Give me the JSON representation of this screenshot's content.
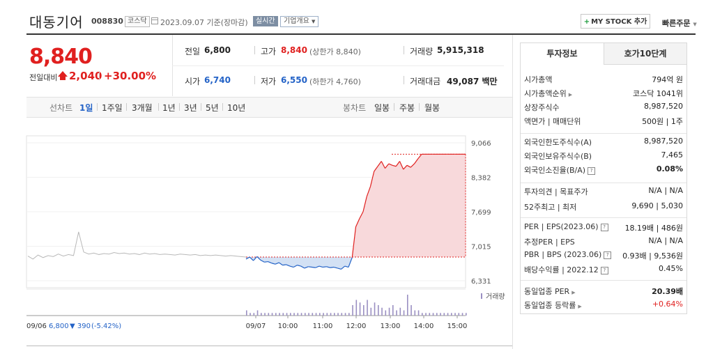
{
  "header": {
    "name": "대동기어",
    "code": "008830",
    "market": "코스닥",
    "date_text": "2023.09.07 기준(장마감)",
    "realtime": "실시간",
    "company_overview": "기업개요",
    "my_stock_button": "MY STOCK 추가",
    "quick_order": "빠른주문"
  },
  "price": {
    "current": "8,840",
    "prev_label": "전일대비",
    "change": "2,040",
    "change_pct": "+30.00%"
  },
  "summary": {
    "prev_close_label": "전일",
    "prev_close": "6,800",
    "high_label": "고가",
    "high": "8,840",
    "upper_limit": "(상한가 8,840)",
    "volume_label": "거래량",
    "volume": "5,915,318",
    "open_label": "시가",
    "open": "6,740",
    "low_label": "저가",
    "low": "6,550",
    "lower_limit": "(하한가 4,760)",
    "amount_label": "거래대금",
    "amount": "49,087 백만"
  },
  "period_bar": {
    "line_label": "선차트",
    "line_periods": [
      "1일",
      "1주일",
      "3개월",
      "1년",
      "3년",
      "5년",
      "10년"
    ],
    "active_period": "1일",
    "candle_label": "봉차트",
    "candle_periods": [
      "일봉",
      "주봉",
      "월봉"
    ]
  },
  "chart_data": {
    "type": "line",
    "y_ticks": [
      "9,066",
      "8,382",
      "7,699",
      "7,015",
      "6,331"
    ],
    "ylim": [
      6331,
      9066
    ],
    "prev_close": 6800,
    "volume_label": "거래량",
    "x_ticks": [
      "09/07",
      "10:00",
      "11:00",
      "12:00",
      "13:00",
      "14:00",
      "15:00"
    ],
    "prev_day_note": {
      "date": "09/06",
      "price": "6,800",
      "change": "▼ 390",
      "pct": "(-5.42%)"
    },
    "previous_day_series": [
      6820,
      6760,
      6840,
      6790,
      6830,
      6810,
      6860,
      6820,
      6850,
      6830,
      7300,
      6900,
      6860,
      6880,
      6850,
      6870,
      6860,
      6890,
      6870,
      6880,
      6860,
      6870,
      6850,
      6880,
      6860,
      6870,
      6850,
      6860,
      6850,
      6840,
      6860,
      6850,
      6840,
      6850,
      6830,
      6840,
      6830,
      6840,
      6830,
      6820,
      6830,
      6820,
      6810,
      6800
    ],
    "today_series": [
      6760,
      6800,
      6730,
      6810,
      6740,
      6700,
      6710,
      6680,
      6660,
      6690,
      6640,
      6650,
      6620,
      6600,
      6640,
      6620,
      6580,
      6610,
      6600,
      6590,
      6620,
      6600,
      6610,
      6590,
      6600,
      6580,
      6560,
      6620,
      6600,
      6790,
      7400,
      7560,
      7700,
      8000,
      8200,
      8500,
      8600,
      8700,
      8560,
      8650,
      8620,
      8600,
      8700,
      8540,
      8620,
      8580,
      8650,
      8750,
      8840,
      8840,
      8840,
      8840,
      8840,
      8840,
      8840,
      8840,
      8840,
      8840,
      8840,
      8840,
      8840
    ],
    "volume_series": [
      2,
      1,
      1,
      2,
      1,
      1,
      1,
      1,
      1,
      1,
      1,
      1,
      1,
      1,
      1,
      1,
      1,
      1,
      1,
      1,
      1,
      1,
      1,
      1,
      1,
      1,
      1,
      1,
      1,
      4,
      6,
      5,
      4,
      6,
      3,
      5,
      4,
      3,
      2,
      3,
      4,
      2,
      3,
      2,
      8,
      4,
      2,
      2,
      1,
      1,
      1,
      1,
      1,
      1,
      1,
      1,
      1,
      1,
      1,
      1,
      1
    ],
    "colors": {
      "up": "#e0201f",
      "down": "#2463c7",
      "fill_up": "#f8d9db",
      "fill_down": "#d3e1f4",
      "prev_day": "#b8b8b8",
      "volume": "#9a8fc2"
    }
  },
  "invest_panel": {
    "tab_active": "투자정보",
    "tab_inactive": "호가10단계",
    "rows1": [
      {
        "label": "시가총액",
        "value": "794억 원"
      },
      {
        "label": "시가총액순위",
        "value": "코스닥 1041위"
      },
      {
        "label": "상장주식수",
        "value": "8,987,520"
      },
      {
        "label": "액면가 | 매매단위",
        "value": "500원 | 1주"
      }
    ],
    "rows2": [
      {
        "label": "외국인한도주식수(A)",
        "value": "8,987,520"
      },
      {
        "label": "외국인보유주식수(B)",
        "value": "7,465"
      },
      {
        "label": "외국인소진율(B/A)",
        "value": "0.08%"
      }
    ],
    "rows3": [
      {
        "label": "투자의견 | 목표주가",
        "value": "N/A | N/A"
      },
      {
        "label": "52주최고 | 최저",
        "value": "9,690 | 5,030"
      }
    ],
    "rows4": [
      {
        "label": "PER | EPS(2023.06)",
        "value": "18.19배 | 486원"
      },
      {
        "label": "추정PER | EPS",
        "value": "N/A | N/A"
      },
      {
        "label": "PBR | BPS (2023.06)",
        "value": "0.93배 | 9,536원"
      },
      {
        "label": "배당수익률 | 2022.12",
        "value": "0.45%"
      }
    ],
    "rows5": [
      {
        "label": "동일업종 PER",
        "value": "20.39배"
      },
      {
        "label": "동일업종 등락률",
        "value": "+0.64%"
      }
    ]
  }
}
